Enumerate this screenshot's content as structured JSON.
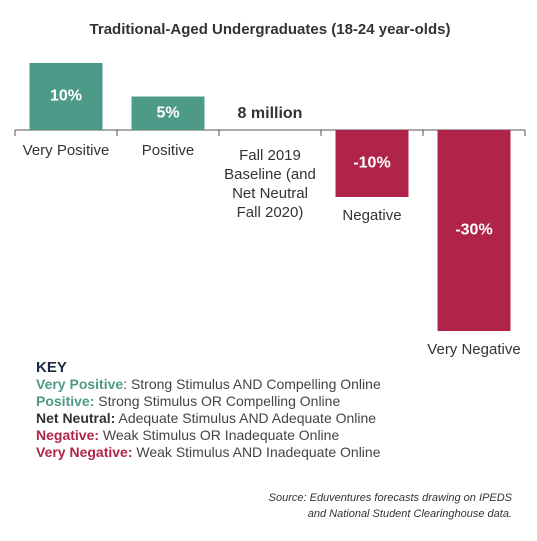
{
  "chart_data": {
    "type": "bar",
    "title": "Traditional-Aged Undergraduates (18-24 year-olds)",
    "categories": [
      "Very Positive",
      "Positive",
      "Fall 2019 Baseline (and Net Neutral Fall 2020)",
      "Negative",
      "Very Negative"
    ],
    "values": [
      10,
      5,
      null,
      -10,
      -30
    ],
    "value_labels": [
      "10%",
      "5%",
      null,
      "-10%",
      "-30%"
    ],
    "annotation": "8 million",
    "color_positive": "#4e9a88",
    "color_negative": "#b1244a",
    "ylim": [
      -30,
      10
    ]
  },
  "key": {
    "title": "KEY",
    "items": [
      {
        "term": "Very Positive",
        "description": ": Strong Stimulus AND Compelling Online",
        "color": "#4e9a88"
      },
      {
        "term": "Positive:",
        "description": " Strong Stimulus OR Compelling Online",
        "color": "#4e9a88"
      },
      {
        "term": "Net Neutral:",
        "description": " Adequate Stimulus AND Adequate Online",
        "color": "#333333"
      },
      {
        "term": "Negative:",
        "description": " Weak Stimulus OR Inadequate Online",
        "color": "#b1244a"
      },
      {
        "term": "Very Negative:",
        "description": " Weak Stimulus AND Inadequate Online",
        "color": "#b1244a"
      }
    ]
  },
  "source": [
    "Source: Eduventures forecasts drawing on IPEDS",
    "and National Student Clearinghouse data."
  ]
}
